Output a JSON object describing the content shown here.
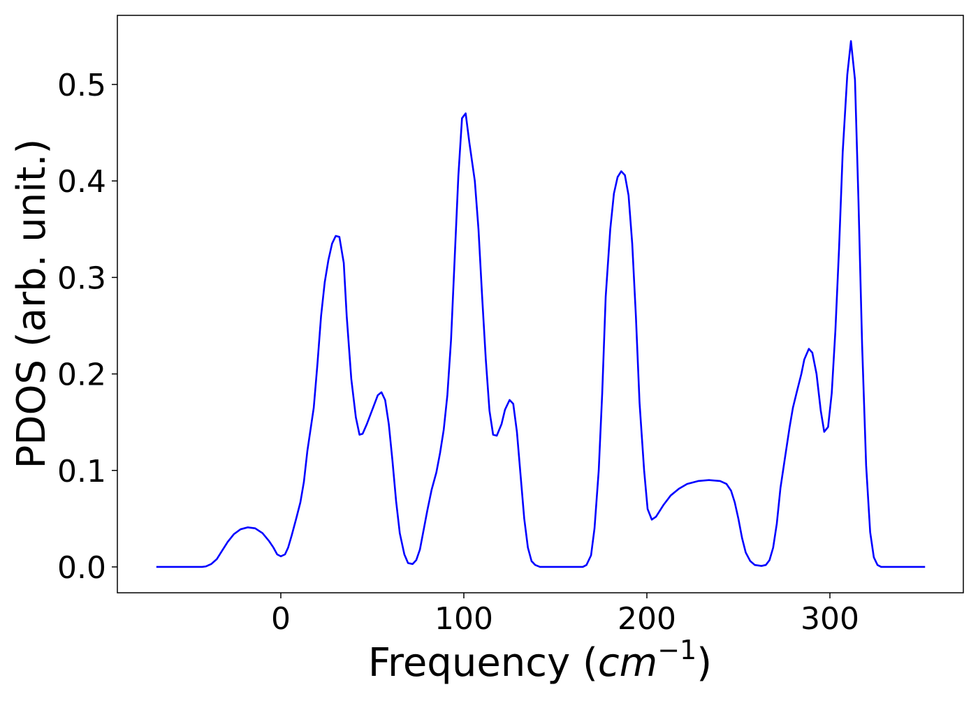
{
  "chart_data": {
    "type": "line",
    "ylabel": "PDOS (arb. unit.)",
    "xlabel": {
      "text": "Frequency (",
      "math": "cm",
      "sup": "−1",
      "close": ")"
    },
    "xlim": [
      -89.3,
      372.9
    ],
    "ylim": [
      -0.0268,
      0.5716
    ],
    "xticks": [
      0,
      100,
      200,
      300
    ],
    "yticks": [
      {
        "value": 0,
        "label": "0.0"
      },
      {
        "value": 0.1,
        "label": "0.1"
      },
      {
        "value": 0.2,
        "label": "0.2"
      },
      {
        "value": 0.3,
        "label": "0.3"
      },
      {
        "value": 0.4,
        "label": "0.4"
      },
      {
        "value": 0.5,
        "label": "0.5"
      }
    ],
    "grid": false,
    "series": [
      {
        "color": "#0000ff",
        "x": [
          -68,
          -43,
          -41,
          -38,
          -35,
          -32,
          -29,
          -25.6,
          -22,
          -18,
          -14,
          -10,
          -6.5,
          -4,
          -2,
          0,
          2.3,
          4,
          6,
          8.4,
          10.7,
          12.6,
          14.5,
          18,
          20,
          22,
          24,
          26,
          28,
          30,
          32,
          34.4,
          36,
          38.5,
          41,
          43,
          44.7,
          47,
          51,
          53,
          55,
          57,
          59,
          61,
          63,
          65,
          67.5,
          69.5,
          72,
          74,
          76,
          78,
          80,
          82.4,
          85,
          87,
          89,
          91,
          93,
          95,
          97,
          99,
          101,
          103,
          106,
          108,
          110,
          112,
          114,
          116,
          118,
          120.6,
          122.5,
          125,
          127,
          129,
          131,
          133,
          135,
          137,
          139,
          141.6,
          165,
          167,
          169.5,
          171.4,
          173.7,
          175.6,
          177.5,
          180,
          182,
          184,
          186,
          188,
          190,
          192,
          194,
          196,
          198.5,
          200.4,
          202.7,
          205,
          209,
          213,
          217.5,
          222,
          228,
          234,
          240,
          243.5,
          246,
          248,
          250,
          252,
          254,
          256.5,
          259,
          262.6,
          265,
          267,
          269,
          271,
          273,
          275.6,
          278,
          279.8,
          282,
          284.4,
          286,
          288.5,
          290.4,
          292.7,
          295,
          296.9,
          299,
          301,
          303,
          305,
          307,
          309.5,
          311.5,
          313.7,
          315.6,
          317.6,
          319.8,
          322,
          324,
          326,
          328,
          352
        ],
        "values": [
          0,
          0,
          0.0005,
          0.003,
          0.008,
          0.017,
          0.026,
          0.034,
          0.039,
          0.041,
          0.04,
          0.035,
          0.027,
          0.02,
          0.013,
          0.011,
          0.013,
          0.02,
          0.033,
          0.05,
          0.067,
          0.088,
          0.12,
          0.165,
          0.21,
          0.26,
          0.295,
          0.318,
          0.335,
          0.343,
          0.342,
          0.315,
          0.26,
          0.195,
          0.155,
          0.137,
          0.138,
          0.148,
          0.168,
          0.178,
          0.181,
          0.173,
          0.148,
          0.11,
          0.068,
          0.035,
          0.013,
          0.004,
          0.003,
          0.007,
          0.018,
          0.038,
          0.058,
          0.08,
          0.098,
          0.118,
          0.142,
          0.178,
          0.235,
          0.32,
          0.405,
          0.465,
          0.47,
          0.44,
          0.4,
          0.35,
          0.28,
          0.215,
          0.162,
          0.137,
          0.136,
          0.148,
          0.163,
          0.173,
          0.169,
          0.14,
          0.095,
          0.05,
          0.02,
          0.006,
          0.002,
          0,
          0,
          0.002,
          0.012,
          0.04,
          0.1,
          0.18,
          0.28,
          0.35,
          0.387,
          0.404,
          0.41,
          0.406,
          0.385,
          0.335,
          0.26,
          0.17,
          0.1,
          0.06,
          0.049,
          0.052,
          0.064,
          0.074,
          0.081,
          0.086,
          0.089,
          0.09,
          0.089,
          0.086,
          0.079,
          0.067,
          0.05,
          0.03,
          0.015,
          0.006,
          0.002,
          0.001,
          0.002,
          0.007,
          0.02,
          0.045,
          0.082,
          0.115,
          0.145,
          0.165,
          0.182,
          0.2,
          0.215,
          0.226,
          0.222,
          0.2,
          0.162,
          0.14,
          0.145,
          0.18,
          0.245,
          0.33,
          0.43,
          0.51,
          0.545,
          0.505,
          0.38,
          0.23,
          0.105,
          0.036,
          0.01,
          0.002,
          0,
          0
        ]
      }
    ]
  }
}
